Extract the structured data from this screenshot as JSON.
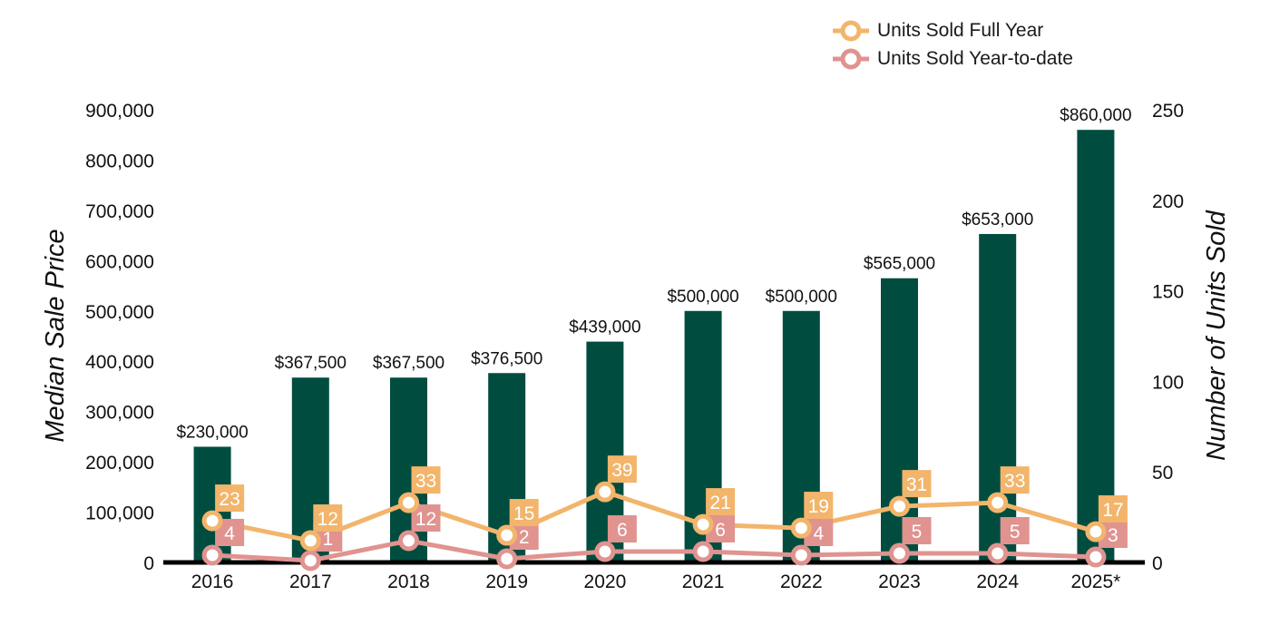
{
  "chart_data": {
    "type": "bar",
    "categories": [
      "2016",
      "2017",
      "2018",
      "2019",
      "2020",
      "2021",
      "2022",
      "2023",
      "2024",
      "2025*"
    ],
    "bar_series": {
      "values": [
        230000,
        367500,
        367500,
        376500,
        439000,
        500000,
        500000,
        565000,
        653000,
        860000
      ],
      "labels": [
        "$230,000",
        "$367,500",
        "$367,500",
        "$376,500",
        "$439,000",
        "$500,000",
        "$500,000",
        "$565,000",
        "$653,000",
        "$860,000"
      ],
      "color": "#004d40"
    },
    "line_series": [
      {
        "name": "Units Sold Full Year",
        "values": [
          23,
          12,
          33,
          15,
          39,
          21,
          19,
          31,
          33,
          17
        ],
        "color": "#f2b56b"
      },
      {
        "name": "Units Sold Year-to-date",
        "values": [
          4,
          1,
          12,
          2,
          6,
          6,
          4,
          5,
          5,
          3
        ],
        "color": "#e0938f"
      }
    ],
    "y_left": {
      "label": "Median Sale Price",
      "range": [
        0,
        900000
      ],
      "ticks": [
        "0",
        "100,000",
        "200,000",
        "300,000",
        "400,000",
        "500,000",
        "600,000",
        "700,000",
        "800,000",
        "900,000"
      ]
    },
    "y_right": {
      "label": "Number of Units Sold",
      "range": [
        0,
        250
      ],
      "ticks": [
        "0",
        "50",
        "100",
        "150",
        "200",
        "250"
      ]
    },
    "legend_position": "top-right",
    "grid": false
  }
}
